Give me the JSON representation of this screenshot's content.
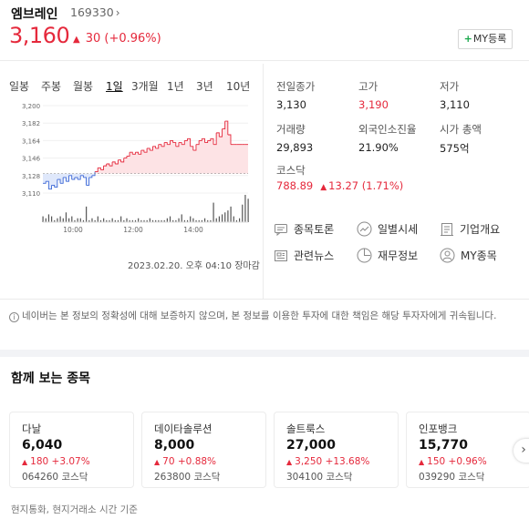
{
  "stock": {
    "name": "엠브레인",
    "code": "169330",
    "code_chevron": "›",
    "price": "3,160",
    "change_arrow": "▲",
    "change": "30",
    "change_pct": "(+0.96%)",
    "my_button_plus": "+",
    "my_button_label": "MY등록",
    "accent_red": "#e5293c",
    "accent_blue": "#3b67d6"
  },
  "tabs": [
    {
      "label": "일봉",
      "active": false
    },
    {
      "label": "주봉",
      "active": false
    },
    {
      "label": "월봉",
      "active": false
    },
    {
      "label": "1일",
      "active": true
    },
    {
      "label": "3개월",
      "active": false
    },
    {
      "label": "1년",
      "active": false
    },
    {
      "label": "3년",
      "active": false
    },
    {
      "label": "10년",
      "active": false
    }
  ],
  "chart_data": {
    "type": "line",
    "yticks": [
      "3,200",
      "3,182",
      "3,164",
      "3,146",
      "3,128",
      "3,110"
    ],
    "ytick_values": [
      3200,
      3182,
      3164,
      3146,
      3128,
      3110
    ],
    "xticks": [
      "10:00",
      "12:00",
      "14:00"
    ],
    "ylim": [
      3110,
      3200
    ],
    "baseline": 3130,
    "series": [
      {
        "values": [
          3120,
          3122,
          3114,
          3118,
          3116,
          3124,
          3120,
          3126,
          3122,
          3128,
          3124,
          3126,
          3124,
          3128,
          3126,
          3118,
          3126,
          3128,
          3132,
          3136,
          3134,
          3138,
          3140,
          3138,
          3142,
          3140,
          3144,
          3142,
          3146,
          3148,
          3152,
          3150,
          3152,
          3150,
          3154,
          3152,
          3156,
          3154,
          3158,
          3156,
          3160,
          3158,
          3162,
          3160,
          3164,
          3162,
          3158,
          3162,
          3160,
          3164,
          3166,
          3158,
          3154,
          3160,
          3164,
          3166,
          3162,
          3164,
          3166,
          3160,
          3172,
          3168,
          3176,
          3184,
          3170,
          3160,
          3160,
          3160,
          3160,
          3160,
          3160,
          3160
        ]
      }
    ],
    "volume": [
      3,
      2,
      4,
      3,
      1,
      2,
      3,
      2,
      5,
      2,
      3,
      1,
      2,
      2,
      1,
      8,
      1,
      2,
      1,
      3,
      1,
      2,
      1,
      1,
      2,
      1,
      1,
      3,
      1,
      2,
      1,
      1,
      1,
      2,
      1,
      1,
      1,
      2,
      1,
      1,
      1,
      1,
      1,
      2,
      3,
      1,
      1,
      2,
      4,
      1,
      1,
      3,
      2,
      1,
      1,
      1,
      2,
      1,
      1,
      10,
      2,
      3,
      4,
      5,
      6,
      8,
      3,
      1,
      2,
      9,
      14,
      12
    ]
  },
  "chart_date": "2023.02.20. 오후 04:10 장마감",
  "info": {
    "prev_close_label": "전일종가",
    "prev_close": "3,130",
    "high_label": "고가",
    "high": "3,190",
    "low_label": "저가",
    "low": "3,110",
    "volume_label": "거래량",
    "volume": "29,893",
    "foreign_label": "외국인소진율",
    "foreign": "21.90%",
    "mcap_label": "시가 총액",
    "mcap": "575억"
  },
  "kosdaq": {
    "label": "코스닥",
    "value": "788.89",
    "arrow": "▲",
    "change": "13.27",
    "pct": "(1.71%)"
  },
  "links": [
    {
      "label": "종목토론",
      "icon": "discussion-icon"
    },
    {
      "label": "일별시세",
      "icon": "daily-price-icon"
    },
    {
      "label": "기업개요",
      "icon": "company-icon"
    },
    {
      "label": "관련뉴스",
      "icon": "news-icon"
    },
    {
      "label": "재무정보",
      "icon": "finance-icon"
    },
    {
      "label": "MY종목",
      "icon": "my-stock-icon"
    }
  ],
  "notice": "네이버는 본 정보의 정확성에 대해 보증하지 않으며, 본 정보를 이용한 투자에 대한 책임은 해당 투자자에게 귀속됩니다.",
  "notice_icon": "i",
  "related": {
    "title": "함께 보는 종목",
    "next_label": "›",
    "items": [
      {
        "name": "다날",
        "price": "6,040",
        "change": "180",
        "pct": "+3.07%",
        "code": "064260",
        "market": "코스닥"
      },
      {
        "name": "데이타솔루션",
        "price": "8,000",
        "change": "70",
        "pct": "+0.88%",
        "code": "263800",
        "market": "코스닥"
      },
      {
        "name": "솔트룩스",
        "price": "27,000",
        "change": "3,250",
        "pct": "+13.68%",
        "code": "304100",
        "market": "코스닥"
      },
      {
        "name": "인포뱅크",
        "price": "15,770",
        "change": "150",
        "pct": "+0.96%",
        "code": "039290",
        "market": "코스닥"
      }
    ]
  },
  "footer_note": "현지통화, 현지거래소 시간 기준"
}
